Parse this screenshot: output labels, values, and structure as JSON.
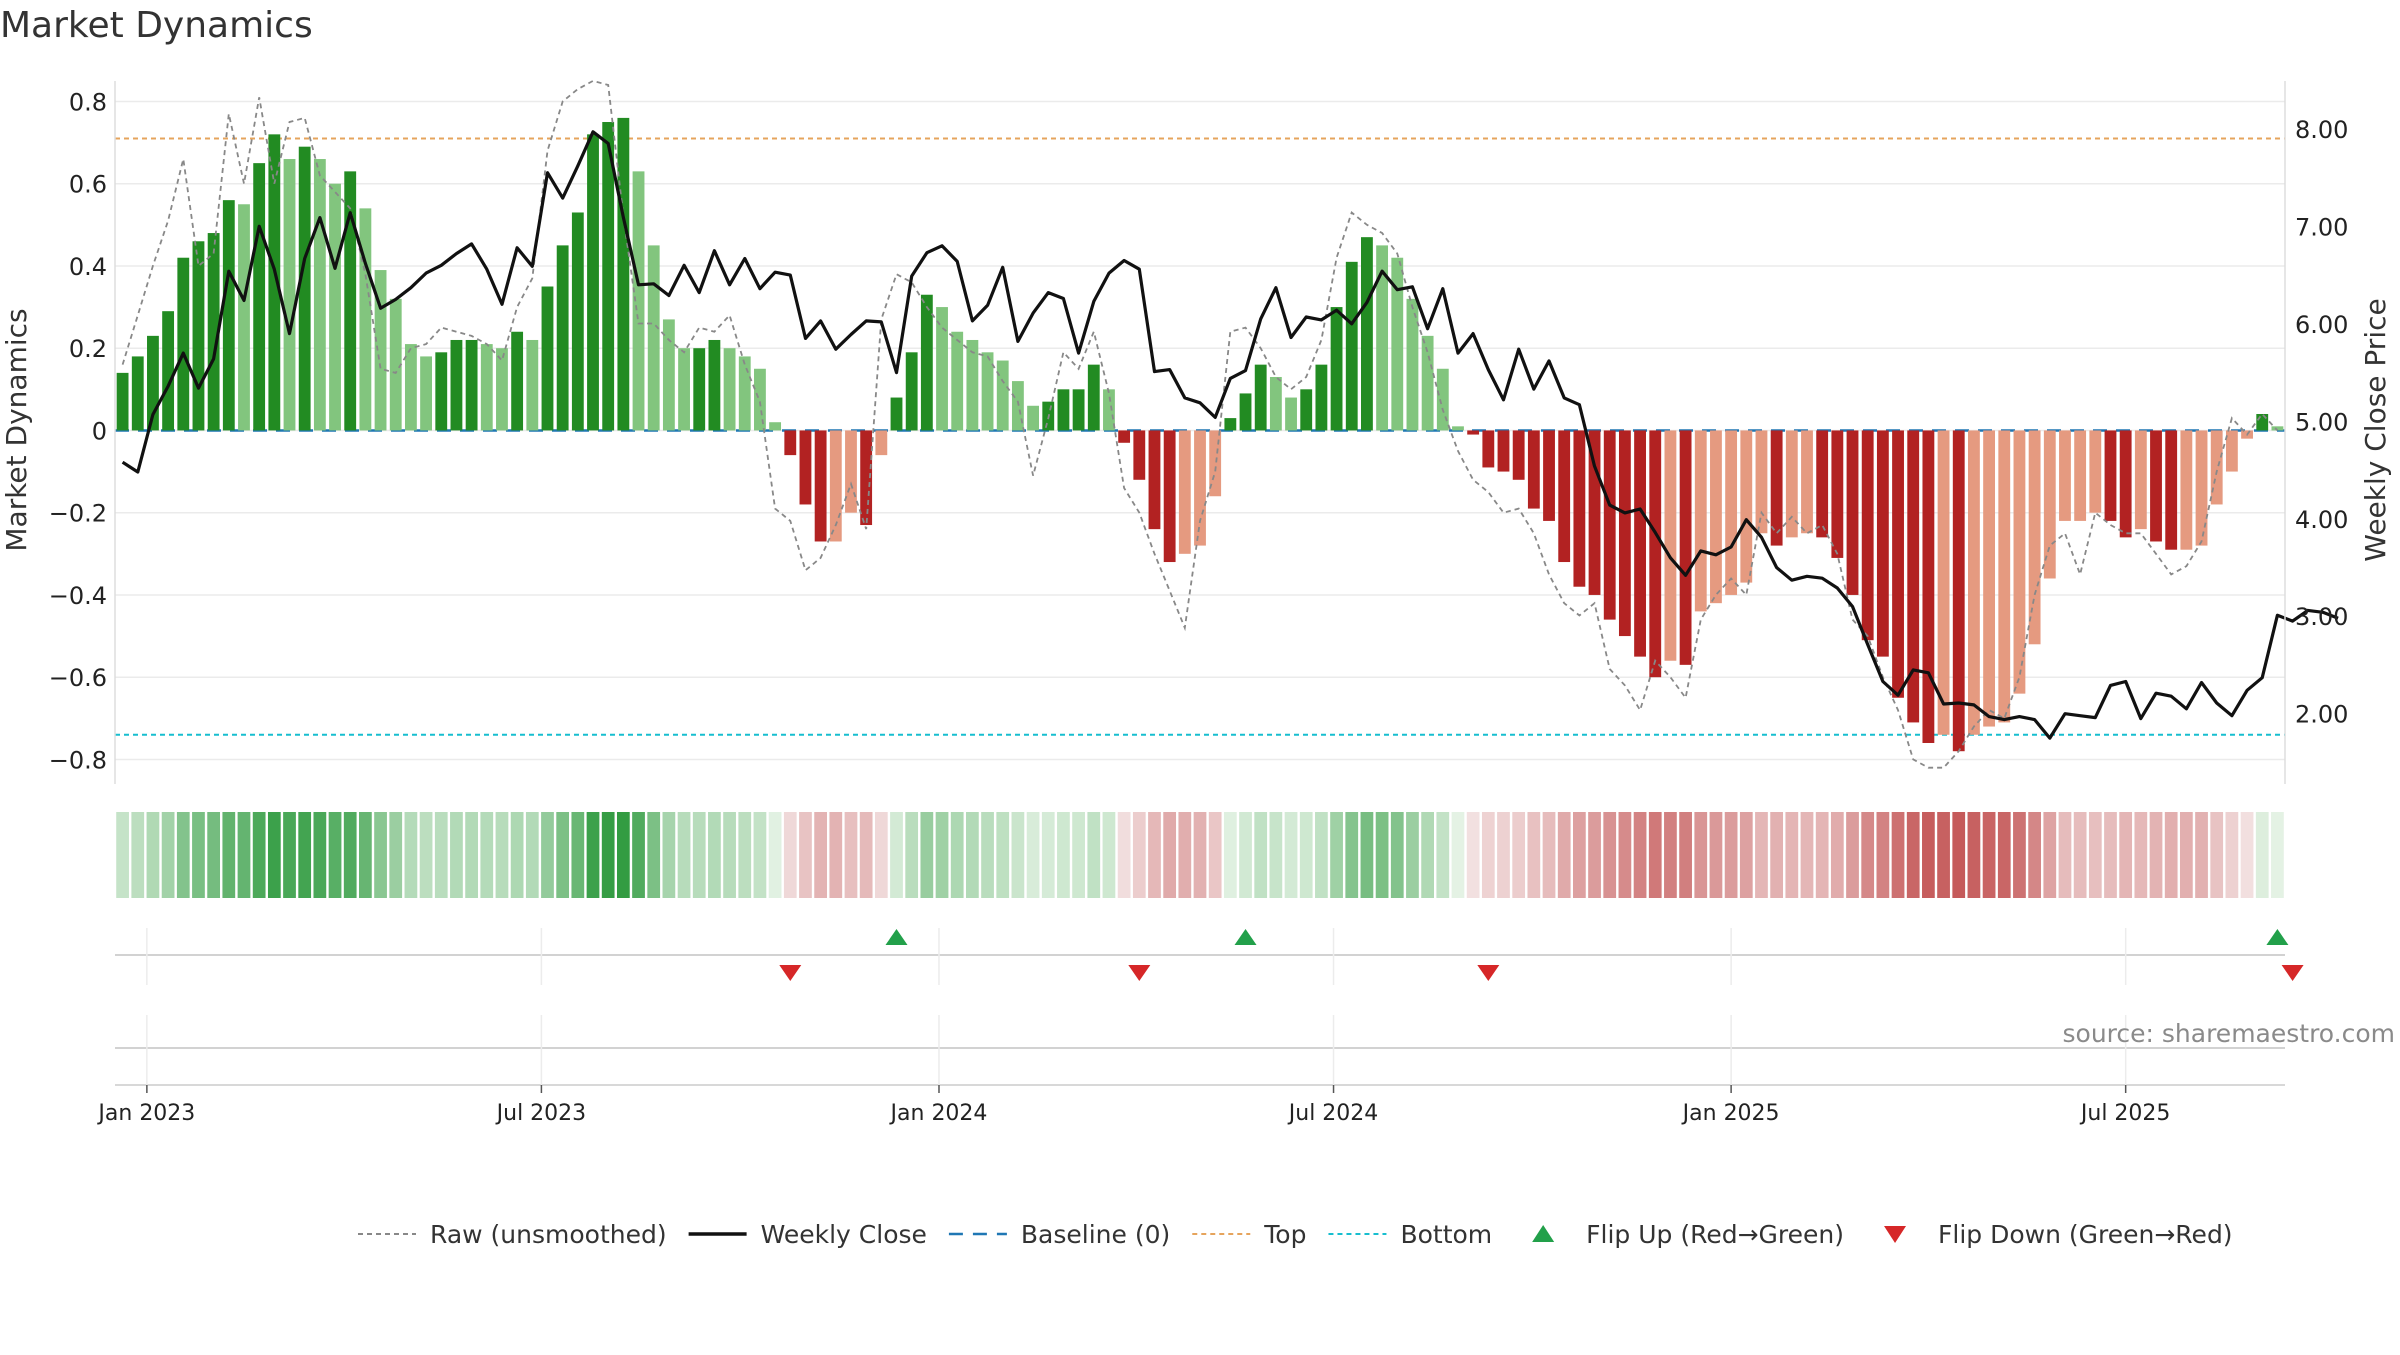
{
  "chart_data": {
    "type": "bar",
    "title": "Market Dynamics",
    "ylabel": "Market Dynamics",
    "y2label": "Weekly Close Price",
    "source": "source: sharemaestro.com",
    "ylim": [
      -0.85,
      0.84
    ],
    "y2lim": [
      1.32,
      8.45
    ],
    "y_ticks": [
      "0.8",
      "0.6",
      "0.4",
      "0.2",
      "0",
      "−0.2",
      "−0.4",
      "−0.6",
      "−0.8"
    ],
    "y_tick_values": [
      0.8,
      0.6,
      0.4,
      0.2,
      0,
      -0.2,
      -0.4,
      -0.6,
      -0.8
    ],
    "y2_ticks": [
      "8.00",
      "7.00",
      "6.00",
      "5.00",
      "4.00",
      "3.00",
      "2.00"
    ],
    "y2_tick_values": [
      8,
      7,
      6,
      5,
      4,
      3,
      2
    ],
    "x_ticks": [
      "Jan 2023",
      "Jul 2023",
      "Jan 2024",
      "Jul 2024",
      "Jan 2025",
      "Jul 2025"
    ],
    "x_tick_weeks": [
      1.6,
      27.6,
      53.8,
      79.8,
      106,
      132
    ],
    "top_level": 0.71,
    "bottom_level": -0.74,
    "grid": true,
    "legend_position": "bottom-center",
    "legend": [
      {
        "label": "Raw (unsmoothed)",
        "kind": "dashed-gray"
      },
      {
        "label": "Weekly Close",
        "kind": "solid-black"
      },
      {
        "label": "Baseline (0)",
        "kind": "dashed-blue"
      },
      {
        "label": "Top",
        "kind": "dotted-orange"
      },
      {
        "label": "Bottom",
        "kind": "dotted-cyan"
      },
      {
        "label": "Flip Up (Red→Green)",
        "kind": "triangle-up"
      },
      {
        "label": "Flip Down (Green→Red)",
        "kind": "triangle-down"
      }
    ],
    "colors": {
      "strong_up": "#228b22",
      "weak_up": "#82c57e",
      "strong_down": "#b22222",
      "weak_down": "#e59a80",
      "baseline": "#1f77b4",
      "top": "#e6a45c",
      "bottom": "#17becf",
      "raw": "#888888",
      "close": "#111111",
      "flip_up": "#22a04a",
      "flip_down": "#d62728"
    },
    "momentum": [
      0.14,
      0.18,
      0.23,
      0.29,
      0.42,
      0.46,
      0.48,
      0.56,
      0.55,
      0.65,
      0.72,
      0.66,
      0.69,
      0.66,
      0.6,
      0.63,
      0.54,
      0.39,
      0.32,
      0.21,
      0.18,
      0.19,
      0.22,
      0.22,
      0.21,
      0.2,
      0.24,
      0.22,
      0.35,
      0.45,
      0.53,
      0.72,
      0.75,
      0.76,
      0.63,
      0.45,
      0.27,
      0.2,
      0.2,
      0.22,
      0.2,
      0.18,
      0.15,
      0.02,
      -0.06,
      -0.18,
      -0.27,
      -0.27,
      -0.2,
      -0.23,
      -0.06,
      0.08,
      0.19,
      0.33,
      0.3,
      0.24,
      0.22,
      0.19,
      0.17,
      0.12,
      0.06,
      0.07,
      0.1,
      0.1,
      0.16,
      0.1,
      -0.03,
      -0.12,
      -0.24,
      -0.32,
      -0.3,
      -0.28,
      -0.16,
      0.03,
      0.09,
      0.16,
      0.13,
      0.08,
      0.1,
      0.16,
      0.3,
      0.41,
      0.47,
      0.45,
      0.42,
      0.32,
      0.23,
      0.15,
      0.01,
      -0.01,
      -0.09,
      -0.1,
      -0.12,
      -0.19,
      -0.22,
      -0.32,
      -0.38,
      -0.4,
      -0.46,
      -0.5,
      -0.55,
      -0.6,
      -0.56,
      -0.57,
      -0.44,
      -0.42,
      -0.4,
      -0.37,
      -0.25,
      -0.28,
      -0.26,
      -0.25,
      -0.26,
      -0.31,
      -0.4,
      -0.51,
      -0.55,
      -0.65,
      -0.71,
      -0.76,
      -0.74,
      -0.78,
      -0.74,
      -0.72,
      -0.71,
      -0.64,
      -0.52,
      -0.36,
      -0.22,
      -0.22,
      -0.2,
      -0.22,
      -0.26,
      -0.24,
      -0.27,
      -0.29,
      -0.29,
      -0.28,
      -0.18,
      -0.1,
      -0.02,
      0.04,
      0.01
    ],
    "raw": [
      0.16,
      0.28,
      0.4,
      0.51,
      0.66,
      0.4,
      0.43,
      0.77,
      0.6,
      0.81,
      0.6,
      0.75,
      0.76,
      0.62,
      0.58,
      0.54,
      0.38,
      0.15,
      0.14,
      0.2,
      0.21,
      0.25,
      0.24,
      0.23,
      0.21,
      0.17,
      0.3,
      0.37,
      0.68,
      0.8,
      0.83,
      0.85,
      0.84,
      0.52,
      0.26,
      0.26,
      0.22,
      0.19,
      0.25,
      0.24,
      0.28,
      0.16,
      0.07,
      -0.19,
      -0.22,
      -0.34,
      -0.31,
      -0.23,
      -0.13,
      -0.24,
      0.27,
      0.38,
      0.36,
      0.3,
      0.25,
      0.22,
      0.19,
      0.18,
      0.12,
      0.07,
      -0.11,
      0.03,
      0.19,
      0.15,
      0.24,
      0.09,
      -0.14,
      -0.2,
      -0.3,
      -0.39,
      -0.48,
      -0.22,
      -0.1,
      0.24,
      0.25,
      0.2,
      0.13,
      0.1,
      0.13,
      0.22,
      0.42,
      0.53,
      0.5,
      0.48,
      0.43,
      0.3,
      0.19,
      0.05,
      -0.05,
      -0.12,
      -0.15,
      -0.2,
      -0.19,
      -0.25,
      -0.35,
      -0.42,
      -0.45,
      -0.42,
      -0.58,
      -0.62,
      -0.68,
      -0.56,
      -0.6,
      -0.65,
      -0.46,
      -0.4,
      -0.36,
      -0.4,
      -0.2,
      -0.25,
      -0.21,
      -0.25,
      -0.23,
      -0.3,
      -0.46,
      -0.5,
      -0.6,
      -0.68,
      -0.8,
      -0.82,
      -0.82,
      -0.78,
      -0.72,
      -0.68,
      -0.7,
      -0.6,
      -0.4,
      -0.28,
      -0.25,
      -0.35,
      -0.2,
      -0.23,
      -0.25,
      -0.25,
      -0.3,
      -0.35,
      -0.33,
      -0.27,
      -0.1,
      0.03,
      -0.01,
      0.04,
      0.0
    ],
    "close": [
      4.58,
      4.48,
      5.07,
      5.36,
      5.7,
      5.34,
      5.64,
      6.54,
      6.24,
      7.0,
      6.56,
      5.9,
      6.67,
      7.09,
      6.57,
      7.14,
      6.62,
      6.16,
      6.25,
      6.37,
      6.52,
      6.6,
      6.72,
      6.82,
      6.56,
      6.2,
      6.78,
      6.59,
      7.55,
      7.29,
      7.62,
      7.97,
      7.85,
      7.09,
      6.4,
      6.41,
      6.29,
      6.6,
      6.32,
      6.75,
      6.4,
      6.67,
      6.36,
      6.53,
      6.5,
      5.85,
      6.03,
      5.74,
      5.89,
      6.03,
      6.02,
      5.5,
      6.49,
      6.73,
      6.8,
      6.64,
      6.03,
      6.19,
      6.58,
      5.82,
      6.11,
      6.32,
      6.26,
      5.7,
      6.23,
      6.52,
      6.65,
      6.56,
      5.51,
      5.53,
      5.24,
      5.19,
      5.04,
      5.44,
      5.52,
      6.05,
      6.37,
      5.86,
      6.07,
      6.04,
      6.14,
      6.0,
      6.22,
      6.54,
      6.35,
      6.38,
      5.95,
      6.36,
      5.7,
      5.9,
      5.53,
      5.22,
      5.74,
      5.33,
      5.62,
      5.24,
      5.17,
      4.54,
      4.14,
      4.06,
      4.1,
      3.86,
      3.6,
      3.42,
      3.67,
      3.63,
      3.71,
      3.99,
      3.81,
      3.5,
      3.37,
      3.41,
      3.39,
      3.29,
      3.1,
      2.71,
      2.33,
      2.19,
      2.45,
      2.42,
      2.1,
      2.11,
      2.09,
      1.97,
      1.94,
      1.97,
      1.94,
      1.75,
      2.0,
      1.98,
      1.96,
      2.29,
      2.33,
      1.95,
      2.21,
      2.18,
      2.05,
      2.32,
      2.11,
      1.98,
      2.24,
      2.37,
      3.01,
      2.95,
      3.06,
      3.04,
      2.98
    ],
    "flips_up_weeks": [
      51,
      74,
      142
    ],
    "flips_down_weeks": [
      44,
      67,
      90,
      143
    ]
  }
}
